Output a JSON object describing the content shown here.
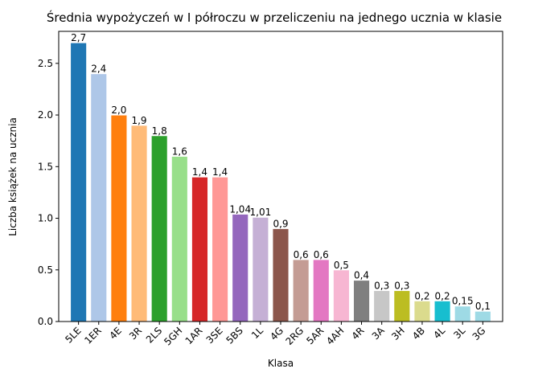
{
  "chart_data": {
    "type": "bar",
    "title": "Średnia wypożyczeń w I półroczu w przeliczeniu na jednego ucznia w klasie",
    "xlabel": "Klasa",
    "ylabel": "Liczba książek na ucznia",
    "ylim": [
      0,
      2.81
    ],
    "yticks": [
      0.0,
      0.5,
      1.0,
      1.5,
      2.0,
      2.5
    ],
    "ytick_labels": [
      "0.0",
      "0.5",
      "1.0",
      "1.5",
      "2.0",
      "2.5"
    ],
    "grid": false,
    "categories": [
      "5LE",
      "1ER",
      "4E",
      "3R",
      "2LS",
      "5GH",
      "1AR",
      "3SE",
      "5BS",
      "1L",
      "4G",
      "2RG",
      "5AR",
      "4AH",
      "4R",
      "3A",
      "3H",
      "4B",
      "4L",
      "3L",
      "3G"
    ],
    "values": [
      2.7,
      2.4,
      2.0,
      1.9,
      1.8,
      1.6,
      1.4,
      1.4,
      1.04,
      1.01,
      0.9,
      0.6,
      0.6,
      0.5,
      0.4,
      0.3,
      0.3,
      0.2,
      0.2,
      0.15,
      0.1
    ],
    "data_labels": [
      "2,7",
      "2,4",
      "2,0",
      "1,9",
      "1,8",
      "1,6",
      "1,4",
      "1,4",
      "1,04",
      "1,01",
      "0,9",
      "0,6",
      "0,6",
      "0,5",
      "0,4",
      "0,3",
      "0,3",
      "0,2",
      "0,2",
      "0,15",
      "0,1"
    ],
    "colors": [
      "#1f77b4",
      "#aec7e8",
      "#ff7f0e",
      "#ffbb78",
      "#2ca02c",
      "#98df8a",
      "#d62728",
      "#ff9896",
      "#9467bd",
      "#c5b0d5",
      "#8c564b",
      "#c49c94",
      "#e377c2",
      "#f7b6d2",
      "#7f7f7f",
      "#c7c7c7",
      "#bcbd22",
      "#dbdb8d",
      "#17becf",
      "#9edae5",
      "#9edae5"
    ]
  }
}
